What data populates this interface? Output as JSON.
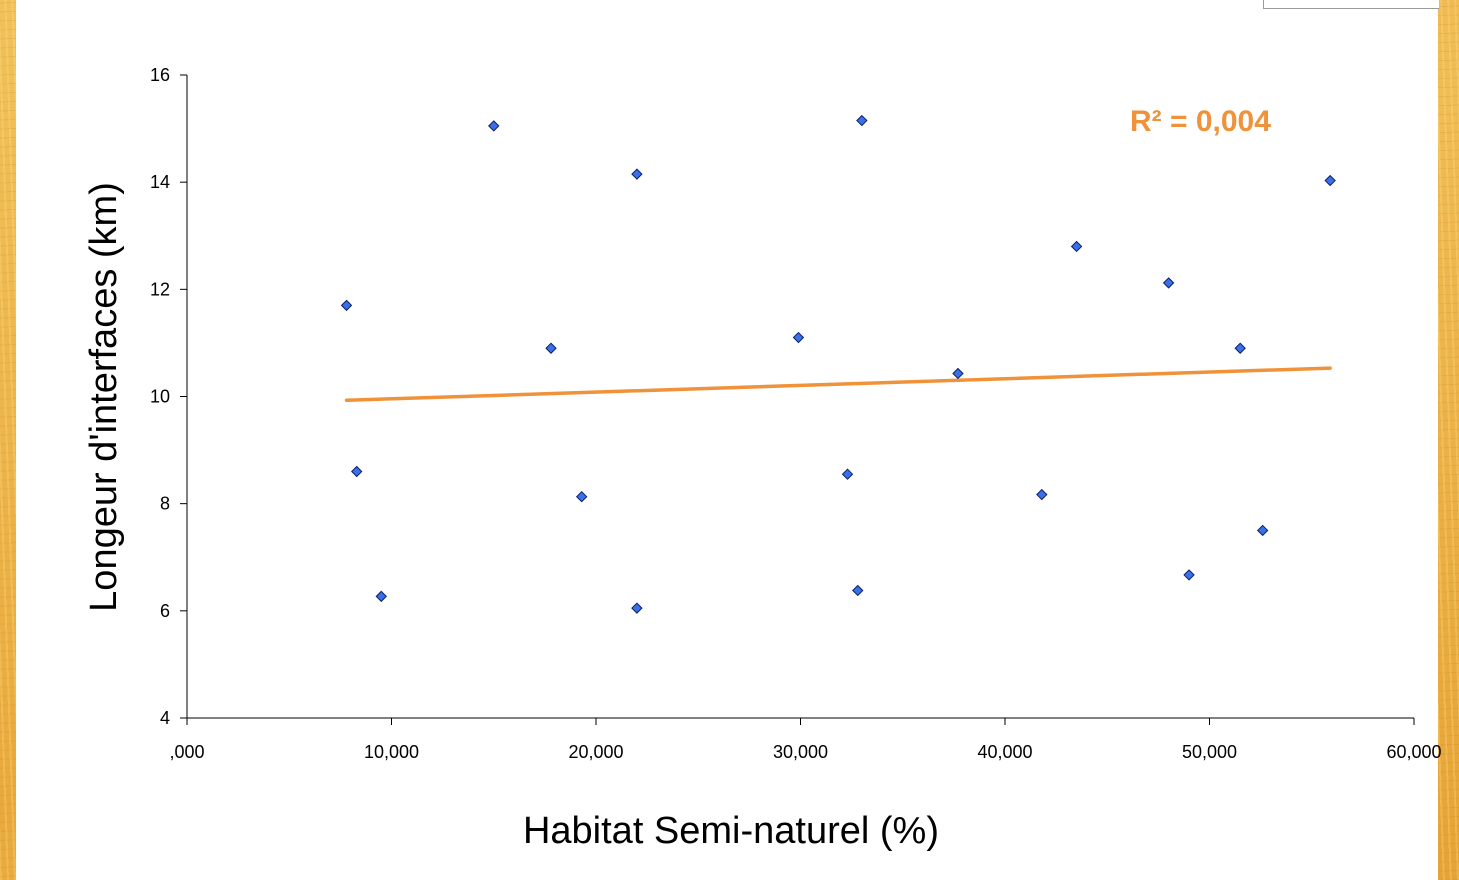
{
  "chart_data": {
    "type": "scatter",
    "title": "",
    "xlabel": "Habitat Semi-naturel (%)",
    "ylabel": "Longeur d'interfaces (km)",
    "xlim": [
      0,
      60
    ],
    "ylim": [
      4,
      16
    ],
    "x_ticks": [
      0,
      10,
      20,
      30,
      40,
      50,
      60
    ],
    "x_tick_labels": [
      ",000",
      "10,000",
      "20,000",
      "30,000",
      "40,000",
      "50,000",
      "60,000"
    ],
    "y_ticks": [
      4,
      6,
      8,
      10,
      12,
      14,
      16
    ],
    "y_tick_labels": [
      "4",
      "6",
      "8",
      "10",
      "12",
      "14",
      "16"
    ],
    "grid": false,
    "series": [
      {
        "x": [
          7.8,
          8.3,
          9.5,
          15.0,
          17.8,
          19.3,
          22.0,
          22.0,
          29.9,
          32.3,
          32.8,
          33.0,
          37.7,
          41.8,
          43.5,
          48.0,
          49.0,
          51.5,
          52.6,
          55.9
        ],
        "y": [
          11.7,
          8.6,
          6.27,
          15.05,
          10.9,
          8.13,
          14.15,
          6.05,
          11.1,
          8.55,
          6.38,
          15.15,
          10.43,
          8.17,
          12.8,
          12.12,
          6.67,
          10.9,
          7.5,
          14.03
        ],
        "color": "#3b6fe8",
        "marker": "diamond"
      }
    ],
    "trendline": {
      "x": [
        7.8,
        55.9
      ],
      "y": [
        9.93,
        10.53
      ],
      "color": "#f0923a",
      "label": "R² = 0,004",
      "label_color": "#f0923a"
    }
  }
}
